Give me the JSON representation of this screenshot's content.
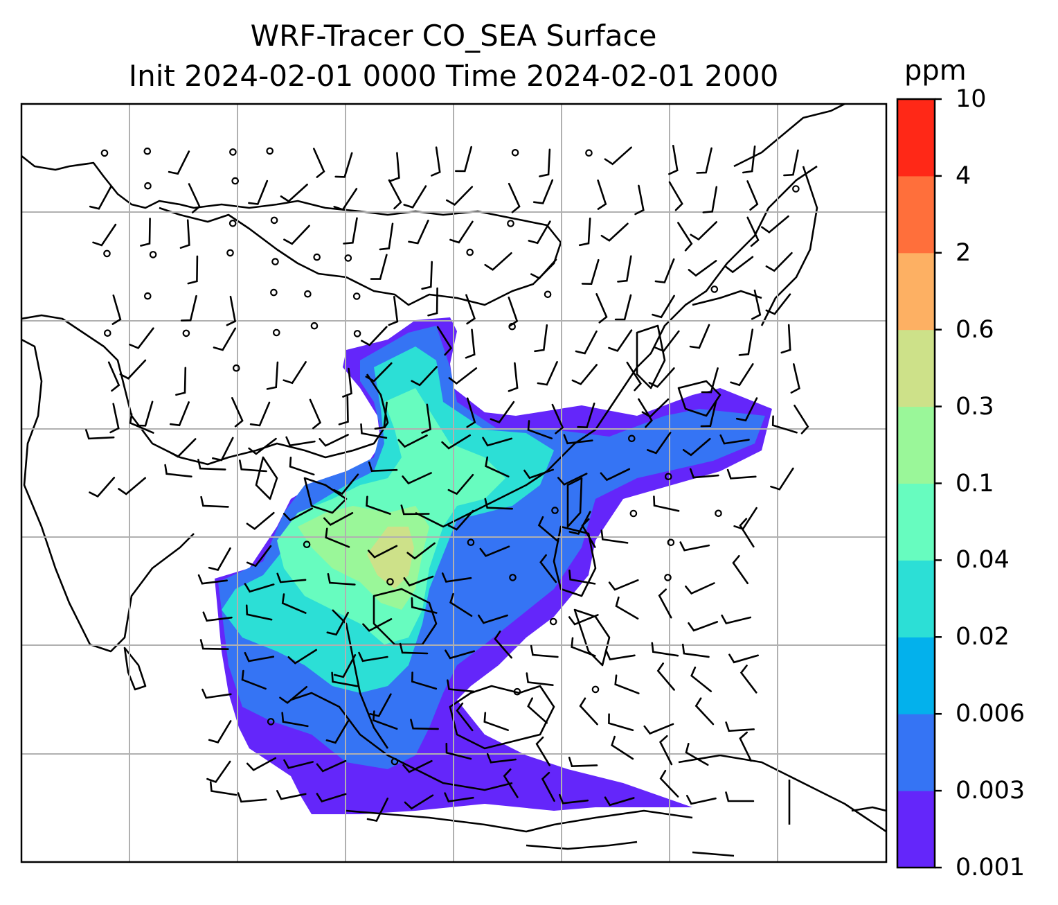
{
  "title": {
    "line1": "WRF-Tracer CO_SEA Surface",
    "line2": "Init 2024-02-01 0000 Time 2024-02-01 2000"
  },
  "colorbar": {
    "units": "ppm",
    "ticks": [
      "0.001",
      "0.003",
      "0.006",
      "0.02",
      "0.04",
      "0.1",
      "0.3",
      "0.6",
      "2",
      "4",
      "10"
    ],
    "colors": [
      "#6426fa",
      "#3574f4",
      "#03b1ec",
      "#2cdfd6",
      "#67fcbf",
      "#9af799",
      "#cde189",
      "#fdb063",
      "#ff6f3b",
      "#ff2817"
    ]
  },
  "map": {
    "field": "CO_SEA surface tracer",
    "overlay": "wind barbs",
    "gridlines": true
  }
}
